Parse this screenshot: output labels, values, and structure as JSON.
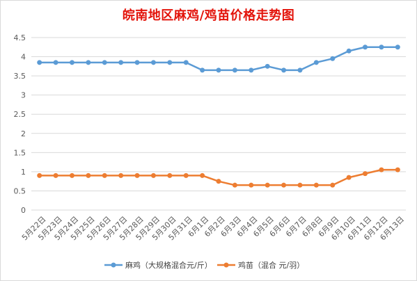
{
  "chart_data": {
    "type": "line",
    "title": "皖南地区麻鸡/鸡苗价格走势图",
    "categories": [
      "5月22日",
      "5月23日",
      "5月24日",
      "5月25日",
      "5月26日",
      "5月27日",
      "5月28日",
      "5月29日",
      "5月30日",
      "5月31日",
      "6月1日",
      "6月2日",
      "6月3日",
      "6月4日",
      "6月5日",
      "6月6日",
      "6月7日",
      "6月8日",
      "6月9日",
      "6月10日",
      "6月11日",
      "6月12日",
      "6月13日"
    ],
    "series": [
      {
        "name": "麻鸡（大规格混合元/斤）",
        "color": "#5b9bd5",
        "values": [
          3.85,
          3.85,
          3.85,
          3.85,
          3.85,
          3.85,
          3.85,
          3.85,
          3.85,
          3.85,
          3.65,
          3.65,
          3.65,
          3.65,
          3.75,
          3.65,
          3.65,
          3.85,
          3.95,
          4.15,
          4.25,
          4.25,
          4.25
        ]
      },
      {
        "name": "鸡苗（混合 元/羽）",
        "color": "#ed7d31",
        "values": [
          0.9,
          0.9,
          0.9,
          0.9,
          0.9,
          0.9,
          0.9,
          0.9,
          0.9,
          0.9,
          0.9,
          0.75,
          0.65,
          0.65,
          0.65,
          0.65,
          0.65,
          0.65,
          0.65,
          0.85,
          0.95,
          1.05,
          1.05
        ]
      }
    ],
    "y_ticks": [
      "0",
      "0.5",
      "1",
      "1.5",
      "2",
      "2.5",
      "3",
      "3.5",
      "4",
      "4.5"
    ],
    "ylim": [
      0,
      4.5
    ],
    "grid": "horizontal",
    "legend_position": "bottom"
  }
}
